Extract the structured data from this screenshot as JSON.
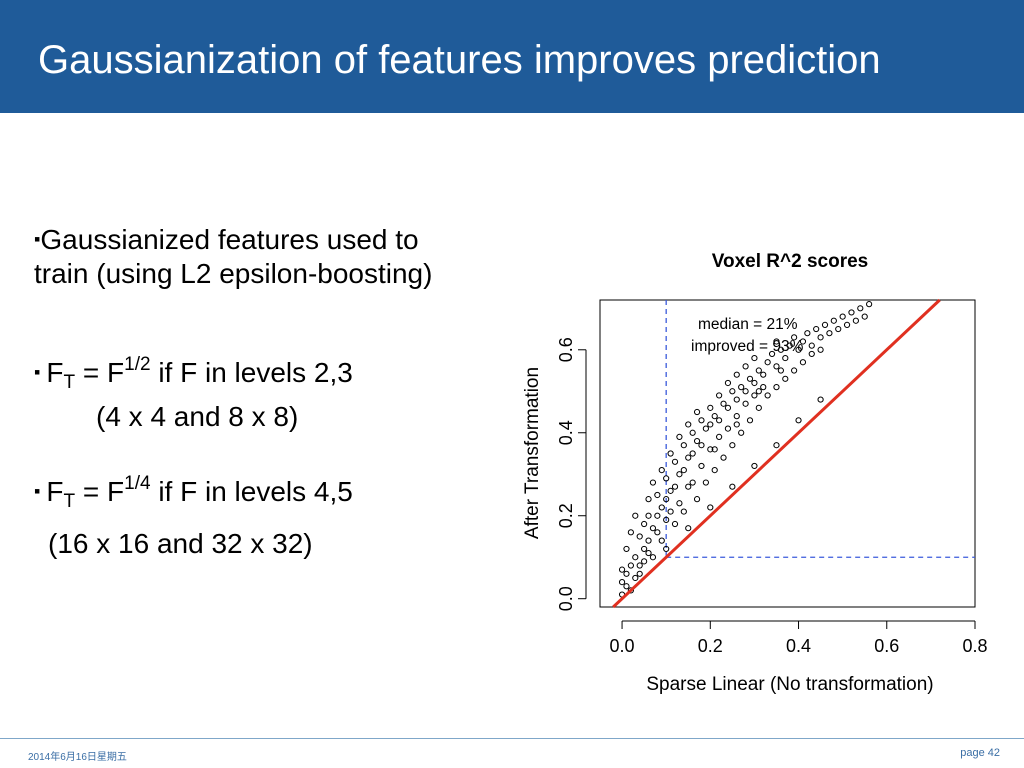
{
  "slide": {
    "title": "Gaussianization of features improves prediction",
    "bullets": {
      "b1": {
        "marker": "▪",
        "line1": "Gaussianized features used to",
        "line2": "train (using L2 epsilon-boosting)"
      },
      "b2": {
        "marker": "▪",
        "lhs": "F",
        "lhs_sub": "T",
        "eq": " = F",
        "exp": "1/2",
        "rest": " if F in levels 2,3",
        "line2": "(4 x 4 and 8 x 8)"
      },
      "b3": {
        "marker": "▪",
        "lhs": "F",
        "lhs_sub": "T",
        "eq": " = F",
        "exp": "1/4",
        "rest": " if F in levels 4,5",
        "line2": "(16 x 16 and 32 x 32)"
      }
    },
    "footer": {
      "date": "2014年6月16日星期五",
      "page": "page 42"
    },
    "colors": {
      "title_bar": "#1f5b99",
      "identity_line": "#e03020",
      "median_lines": "#3b5bdb",
      "points": "#000000"
    }
  },
  "chart_data": {
    "type": "scatter",
    "title": "Voxel R^2 scores",
    "xlabel": "Sparse Linear (No transformation)",
    "ylabel": "After Transformation",
    "xlim": [
      -0.05,
      0.8
    ],
    "ylim": [
      -0.02,
      0.72
    ],
    "xticks": [
      "0.0",
      "0.2",
      "0.4",
      "0.6",
      "0.8"
    ],
    "yticks": [
      "0.0",
      "0.2",
      "0.4",
      "0.6"
    ],
    "xtick_values": [
      0.0,
      0.2,
      0.4,
      0.6,
      0.8
    ],
    "ytick_values": [
      0.0,
      0.2,
      0.4,
      0.6
    ],
    "annotations": [
      "median = 21%",
      "improved = 93%"
    ],
    "reference_lines": {
      "identity": {
        "slope": 1,
        "intercept": 0
      },
      "median_x": 0.1,
      "median_y": 0.1
    },
    "grid": false,
    "series": [
      {
        "points": [
          [
            0.0,
            0.01
          ],
          [
            0.01,
            0.03
          ],
          [
            0.0,
            0.04
          ],
          [
            0.02,
            0.02
          ],
          [
            0.01,
            0.06
          ],
          [
            0.03,
            0.05
          ],
          [
            0.02,
            0.08
          ],
          [
            0.0,
            0.07
          ],
          [
            0.03,
            0.1
          ],
          [
            0.04,
            0.08
          ],
          [
            0.01,
            0.12
          ],
          [
            0.05,
            0.12
          ],
          [
            0.04,
            0.15
          ],
          [
            0.06,
            0.14
          ],
          [
            0.02,
            0.16
          ],
          [
            0.05,
            0.18
          ],
          [
            0.06,
            0.2
          ],
          [
            0.03,
            0.2
          ],
          [
            0.07,
            0.17
          ],
          [
            0.08,
            0.2
          ],
          [
            0.06,
            0.24
          ],
          [
            0.09,
            0.22
          ],
          [
            0.08,
            0.25
          ],
          [
            0.1,
            0.24
          ],
          [
            0.07,
            0.28
          ],
          [
            0.11,
            0.26
          ],
          [
            0.1,
            0.29
          ],
          [
            0.12,
            0.27
          ],
          [
            0.09,
            0.31
          ],
          [
            0.13,
            0.3
          ],
          [
            0.12,
            0.33
          ],
          [
            0.14,
            0.31
          ],
          [
            0.11,
            0.35
          ],
          [
            0.15,
            0.34
          ],
          [
            0.14,
            0.37
          ],
          [
            0.16,
            0.35
          ],
          [
            0.13,
            0.39
          ],
          [
            0.17,
            0.38
          ],
          [
            0.16,
            0.4
          ],
          [
            0.18,
            0.37
          ],
          [
            0.15,
            0.42
          ],
          [
            0.19,
            0.41
          ],
          [
            0.18,
            0.43
          ],
          [
            0.2,
            0.42
          ],
          [
            0.17,
            0.45
          ],
          [
            0.21,
            0.44
          ],
          [
            0.2,
            0.46
          ],
          [
            0.22,
            0.43
          ],
          [
            0.23,
            0.47
          ],
          [
            0.22,
            0.49
          ],
          [
            0.24,
            0.46
          ],
          [
            0.25,
            0.5
          ],
          [
            0.24,
            0.52
          ],
          [
            0.26,
            0.48
          ],
          [
            0.27,
            0.51
          ],
          [
            0.26,
            0.54
          ],
          [
            0.28,
            0.5
          ],
          [
            0.29,
            0.53
          ],
          [
            0.28,
            0.56
          ],
          [
            0.3,
            0.52
          ],
          [
            0.31,
            0.55
          ],
          [
            0.3,
            0.58
          ],
          [
            0.32,
            0.54
          ],
          [
            0.33,
            0.57
          ],
          [
            0.34,
            0.59
          ],
          [
            0.35,
            0.56
          ],
          [
            0.36,
            0.6
          ],
          [
            0.35,
            0.62
          ],
          [
            0.37,
            0.58
          ],
          [
            0.38,
            0.61
          ],
          [
            0.39,
            0.63
          ],
          [
            0.4,
            0.6
          ],
          [
            0.41,
            0.62
          ],
          [
            0.42,
            0.64
          ],
          [
            0.43,
            0.61
          ],
          [
            0.44,
            0.65
          ],
          [
            0.45,
            0.63
          ],
          [
            0.46,
            0.66
          ],
          [
            0.47,
            0.64
          ],
          [
            0.48,
            0.67
          ],
          [
            0.49,
            0.65
          ],
          [
            0.5,
            0.68
          ],
          [
            0.51,
            0.66
          ],
          [
            0.52,
            0.69
          ],
          [
            0.53,
            0.67
          ],
          [
            0.54,
            0.7
          ],
          [
            0.55,
            0.68
          ],
          [
            0.56,
            0.71
          ],
          [
            0.04,
            0.06
          ],
          [
            0.07,
            0.1
          ],
          [
            0.09,
            0.14
          ],
          [
            0.12,
            0.18
          ],
          [
            0.14,
            0.21
          ],
          [
            0.17,
            0.24
          ],
          [
            0.19,
            0.28
          ],
          [
            0.21,
            0.31
          ],
          [
            0.23,
            0.34
          ],
          [
            0.25,
            0.37
          ],
          [
            0.27,
            0.4
          ],
          [
            0.29,
            0.43
          ],
          [
            0.31,
            0.46
          ],
          [
            0.33,
            0.49
          ],
          [
            0.35,
            0.51
          ],
          [
            0.37,
            0.53
          ],
          [
            0.39,
            0.55
          ],
          [
            0.41,
            0.57
          ],
          [
            0.43,
            0.59
          ],
          [
            0.45,
            0.6
          ],
          [
            0.08,
            0.16
          ],
          [
            0.1,
            0.19
          ],
          [
            0.13,
            0.23
          ],
          [
            0.15,
            0.27
          ],
          [
            0.18,
            0.32
          ],
          [
            0.2,
            0.36
          ],
          [
            0.22,
            0.39
          ],
          [
            0.24,
            0.41
          ],
          [
            0.26,
            0.44
          ],
          [
            0.28,
            0.47
          ],
          [
            0.3,
            0.49
          ],
          [
            0.32,
            0.51
          ],
          [
            0.1,
            0.12
          ],
          [
            0.15,
            0.17
          ],
          [
            0.2,
            0.22
          ],
          [
            0.25,
            0.27
          ],
          [
            0.3,
            0.32
          ],
          [
            0.35,
            0.37
          ],
          [
            0.4,
            0.43
          ],
          [
            0.45,
            0.48
          ],
          [
            0.05,
            0.09
          ],
          [
            0.06,
            0.11
          ],
          [
            0.11,
            0.21
          ],
          [
            0.16,
            0.28
          ],
          [
            0.21,
            0.36
          ],
          [
            0.26,
            0.42
          ],
          [
            0.31,
            0.5
          ],
          [
            0.36,
            0.55
          ]
        ]
      }
    ]
  }
}
